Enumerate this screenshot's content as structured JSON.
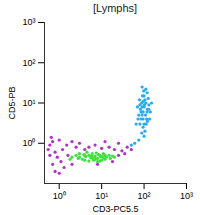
{
  "chart_data": {
    "type": "scatter",
    "title": "[Lymphs]",
    "x_label": "CD3-PC5.5",
    "y_label": "CD5-PB",
    "log": true,
    "xlim": [
      0.45,
      1000
    ],
    "ylim": [
      0.1,
      1000
    ],
    "xticks": [
      {
        "value": 1,
        "label": "10⁰"
      },
      {
        "value": 10,
        "label": "10¹"
      },
      {
        "value": 100,
        "label": "10²"
      },
      {
        "value": 1000,
        "label": "10³"
      }
    ],
    "yticks": [
      {
        "value": 1,
        "label": "10⁰"
      },
      {
        "value": 10,
        "label": "10¹"
      },
      {
        "value": 100,
        "label": "10²"
      },
      {
        "value": 1000,
        "label": "10³"
      }
    ],
    "series": [
      {
        "color": "#b32fc9",
        "points": [
          [
            0.6,
            0.9
          ],
          [
            0.8,
            0.6
          ],
          [
            1,
            1.2
          ],
          [
            0.7,
            0.3
          ],
          [
            1.2,
            0.7
          ],
          [
            0.9,
            0.45
          ],
          [
            1.5,
            0.9
          ],
          [
            0.6,
            0.5
          ],
          [
            2,
            1.1
          ],
          [
            1.1,
            0.35
          ],
          [
            0.8,
            0.2
          ],
          [
            1.3,
            0.25
          ],
          [
            2.5,
            0.8
          ],
          [
            3,
            1
          ],
          [
            5,
            0.8
          ],
          [
            7,
            0.9
          ],
          [
            10,
            0.75
          ],
          [
            15,
            0.8
          ],
          [
            20,
            0.7
          ],
          [
            30,
            0.65
          ],
          [
            40,
            0.8
          ],
          [
            25,
            1.0
          ],
          [
            12,
            1.1
          ],
          [
            4,
            0.7
          ],
          [
            1.6,
            0.5
          ],
          [
            0.55,
            0.7
          ],
          [
            0.65,
            1.4
          ],
          [
            18,
            0.35
          ],
          [
            25,
            0.5
          ],
          [
            35,
            0.55
          ],
          [
            1,
            0.18
          ],
          [
            2,
            0.3
          ],
          [
            8,
            0.3
          ],
          [
            0.7,
            1.1
          ],
          [
            50,
            0.7
          ]
        ]
      },
      {
        "color": "#3de23d",
        "points": [
          [
            3,
            0.45
          ],
          [
            5,
            0.5
          ],
          [
            8,
            0.42
          ],
          [
            4,
            0.38
          ],
          [
            6,
            0.55
          ],
          [
            10,
            0.47
          ],
          [
            2.5,
            0.5
          ],
          [
            12,
            0.4
          ],
          [
            7,
            0.48
          ],
          [
            4.5,
            0.6
          ],
          [
            9,
            0.36
          ],
          [
            15,
            0.5
          ],
          [
            3.5,
            0.4
          ],
          [
            5.5,
            0.44
          ],
          [
            11,
            0.55
          ],
          [
            2,
            0.45
          ],
          [
            6.5,
            0.38
          ],
          [
            8.5,
            0.52
          ],
          [
            13,
            0.45
          ],
          [
            4,
            0.5
          ],
          [
            7,
            0.4
          ],
          [
            9.5,
            0.46
          ],
          [
            5,
            0.36
          ],
          [
            3,
            0.55
          ],
          [
            18,
            0.48
          ],
          [
            6,
            0.43
          ],
          [
            10,
            0.38
          ],
          [
            2.8,
            0.42
          ],
          [
            7.5,
            0.57
          ],
          [
            12,
            0.5
          ],
          [
            4.2,
            0.47
          ],
          [
            16,
            0.42
          ],
          [
            5.8,
            0.49
          ],
          [
            8,
            0.35
          ],
          [
            3.8,
            0.52
          ],
          [
            20,
            0.45
          ],
          [
            6.8,
            0.46
          ],
          [
            9,
            0.5
          ],
          [
            1.8,
            0.4
          ],
          [
            11,
            0.44
          ]
        ]
      },
      {
        "color": "#26aaf2",
        "points": [
          [
            95,
            6
          ],
          [
            100,
            8
          ],
          [
            90,
            5
          ],
          [
            110,
            10
          ],
          [
            85,
            4
          ],
          [
            120,
            7
          ],
          [
            80,
            3
          ],
          [
            105,
            12
          ],
          [
            75,
            5
          ],
          [
            130,
            9
          ],
          [
            92,
            15
          ],
          [
            115,
            4
          ],
          [
            100,
            3
          ],
          [
            70,
            8
          ],
          [
            140,
            6
          ],
          [
            88,
            10
          ],
          [
            98,
            20
          ],
          [
            125,
            13
          ],
          [
            82,
            7
          ],
          [
            108,
            5
          ],
          [
            118,
            18
          ],
          [
            95,
            2.5
          ],
          [
            78,
            12
          ],
          [
            135,
            4
          ],
          [
            102,
            9
          ],
          [
            90,
            25
          ],
          [
            112,
            3
          ],
          [
            85,
            6
          ],
          [
            128,
            7
          ],
          [
            96,
            11
          ],
          [
            72,
            4
          ],
          [
            105,
            2
          ],
          [
            118,
            6
          ],
          [
            90,
            8
          ],
          [
            100,
            15
          ],
          [
            150,
            10
          ],
          [
            65,
            3
          ],
          [
            110,
            22
          ],
          [
            95,
            4
          ],
          [
            80,
            9
          ],
          [
            120,
            3.5
          ],
          [
            88,
            1.8
          ],
          [
            100,
            1.5
          ],
          [
            75,
            1.2
          ],
          [
            60,
            1
          ],
          [
            50,
            0.9
          ]
        ]
      }
    ]
  }
}
